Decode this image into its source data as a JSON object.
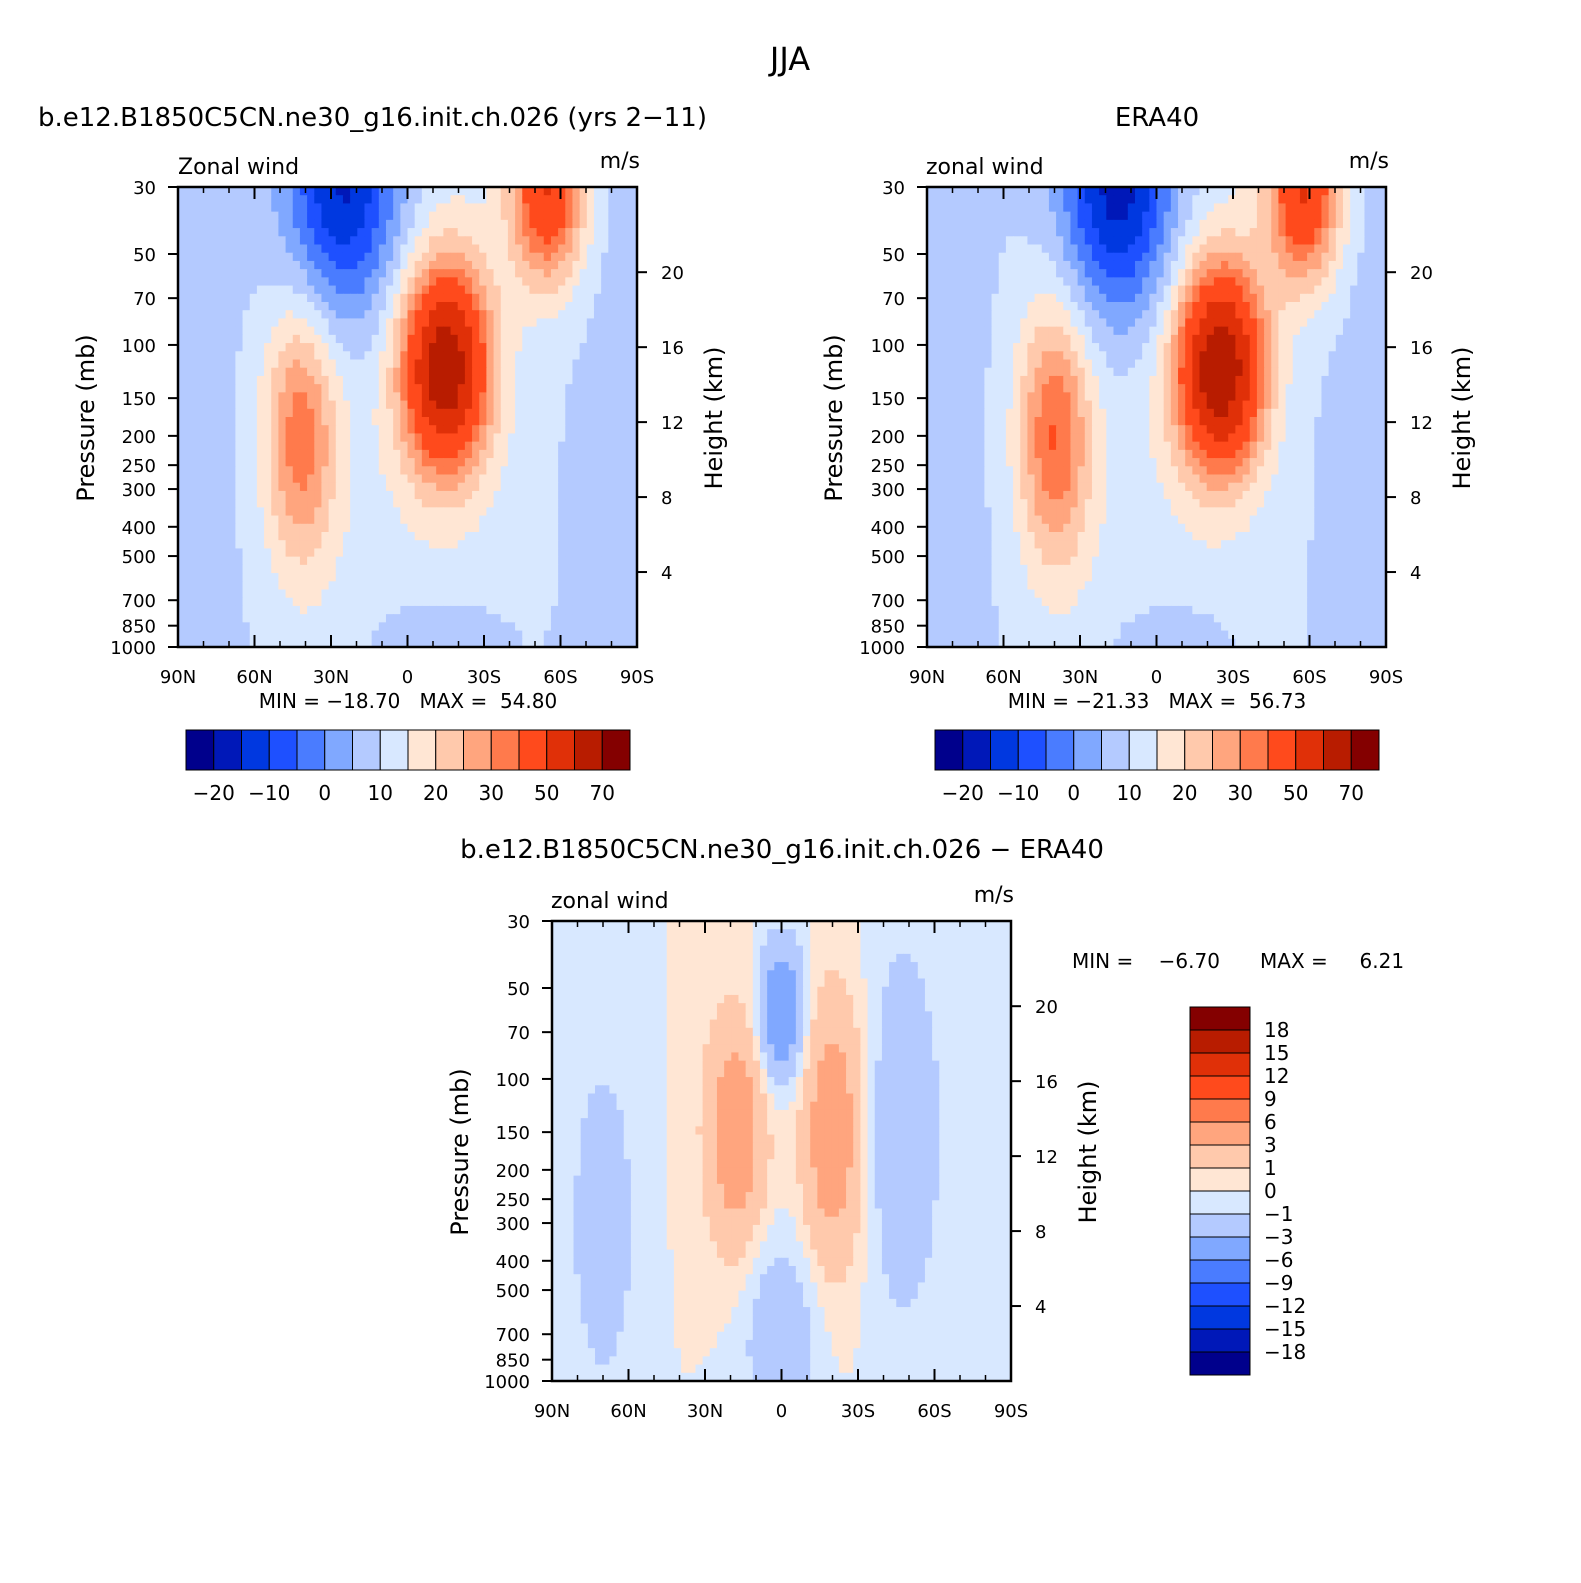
{
  "figure": {
    "title": "JJA"
  },
  "colors": {
    "main_scale": [
      "#00008c",
      "#0018b8",
      "#0038e0",
      "#1e50ff",
      "#4a7cff",
      "#80a8ff",
      "#b4caff",
      "#d8e8ff",
      "#ffe6d4",
      "#ffc9ac",
      "#ffa57e",
      "#ff7a4c",
      "#ff4a1c",
      "#e03008",
      "#b81c00",
      "#840000"
    ],
    "diff_scale": [
      "#00008c",
      "#0018b8",
      "#0038e0",
      "#1e50ff",
      "#4a7cff",
      "#80a8ff",
      "#b4caff",
      "#d8e8ff",
      "#ffe6d4",
      "#ffc9ac",
      "#ffa57e",
      "#ff7a4c",
      "#ff4a1c",
      "#e03008",
      "#b81c00",
      "#840000"
    ]
  },
  "chart_data": [
    {
      "id": "model",
      "type": "contour",
      "title": "b.e12.B1850C5CN.ne30_g16.init.ch.026 (yrs 2−11)",
      "left_label": "Zonal wind",
      "right_label": "m/s",
      "ylabel": "Pressure (mb)",
      "y2label": "Height (km)",
      "x_ticks": [
        "90N",
        "60N",
        "30N",
        "0",
        "30S",
        "60S",
        "90S"
      ],
      "y_ticks": [
        "30",
        "50",
        "70",
        "100",
        "150",
        "200",
        "250",
        "300",
        "400",
        "500",
        "700",
        "850",
        "1000"
      ],
      "y2_ticks": [
        "20",
        "16",
        "12",
        "8",
        "4"
      ],
      "xlim": [
        90,
        -90
      ],
      "ylim": [
        1000,
        30
      ],
      "scale": "log",
      "stats": "MIN = −18.70   MAX =  54.80",
      "legend_labels": [
        "−20",
        "−10",
        "0",
        "10",
        "20",
        "30",
        "50",
        "70"
      ],
      "fields": [
        {
          "lat": -15,
          "p": 120,
          "amp": 50,
          "wx": 12,
          "wy": 0.55
        },
        {
          "lat": -55,
          "p": 30,
          "amp": 35,
          "wx": 10,
          "wy": 0.5
        },
        {
          "lat": 42,
          "p": 200,
          "amp": 22,
          "wx": 10,
          "wy": 0.7
        },
        {
          "lat": 25,
          "p": 30,
          "amp": -28,
          "wx": 16,
          "wy": 0.7
        },
        {
          "lat": -10,
          "p": 1000,
          "amp": -6,
          "wx": 20,
          "wy": 0.3
        }
      ]
    },
    {
      "id": "obs",
      "type": "contour",
      "title": "ERA40",
      "left_label": "zonal wind",
      "right_label": "m/s",
      "ylabel": "Pressure (mb)",
      "y2label": "Height (km)",
      "x_ticks": [
        "90N",
        "60N",
        "30N",
        "0",
        "30S",
        "60S",
        "90S"
      ],
      "y_ticks": [
        "30",
        "50",
        "70",
        "100",
        "150",
        "200",
        "250",
        "300",
        "400",
        "500",
        "700",
        "850",
        "1000"
      ],
      "y2_ticks": [
        "20",
        "16",
        "12",
        "8",
        "4"
      ],
      "xlim": [
        90,
        -90
      ],
      "ylim": [
        1000,
        30
      ],
      "scale": "log",
      "stats": "MIN = −21.33   MAX =  56.73",
      "legend_labels": [
        "−20",
        "−10",
        "0",
        "10",
        "20",
        "30",
        "50",
        "70"
      ],
      "fields": [
        {
          "lat": -25,
          "p": 120,
          "amp": 52,
          "wx": 12,
          "wy": 0.55
        },
        {
          "lat": -58,
          "p": 30,
          "amp": 36,
          "wx": 10,
          "wy": 0.5
        },
        {
          "lat": 40,
          "p": 200,
          "amp": 24,
          "wx": 10,
          "wy": 0.7
        },
        {
          "lat": 15,
          "p": 30,
          "amp": -30,
          "wx": 16,
          "wy": 0.7
        },
        {
          "lat": -5,
          "p": 1000,
          "amp": -5,
          "wx": 20,
          "wy": 0.3
        }
      ]
    },
    {
      "id": "diff",
      "type": "contour",
      "title": "b.e12.B1850C5CN.ne30_g16.init.ch.026 − ERA40",
      "left_label": "zonal wind",
      "right_label": "m/s",
      "ylabel": "Pressure (mb)",
      "y2label": "Height (km)",
      "x_ticks": [
        "90N",
        "60N",
        "30N",
        "0",
        "30S",
        "60S",
        "90S"
      ],
      "y_ticks": [
        "30",
        "50",
        "70",
        "100",
        "150",
        "200",
        "250",
        "300",
        "400",
        "500",
        "700",
        "850",
        "1000"
      ],
      "y2_ticks": [
        "20",
        "16",
        "12",
        "8",
        "4"
      ],
      "xlim": [
        90,
        -90
      ],
      "ylim": [
        1000,
        30
      ],
      "scale": "log",
      "stats_min": "MIN =    −6.70",
      "stats_max": "MAX =     6.21",
      "legend_labels": [
        "18",
        "15",
        "12",
        "9",
        "6",
        "3",
        "1",
        "0",
        "−1",
        "−3",
        "−6",
        "−9",
        "−12",
        "−15",
        "−18"
      ],
      "fields": [
        {
          "lat": 18,
          "p": 150,
          "amp": 5,
          "wx": 8,
          "wy": 0.6
        },
        {
          "lat": -20,
          "p": 150,
          "amp": 5,
          "wx": 8,
          "wy": 0.7
        },
        {
          "lat": 0,
          "p": 60,
          "amp": -6,
          "wx": 6,
          "wy": 0.35
        },
        {
          "lat": -48,
          "p": 150,
          "amp": -2.5,
          "wx": 10,
          "wy": 1.0
        },
        {
          "lat": 70,
          "p": 300,
          "amp": -2.5,
          "wx": 8,
          "wy": 0.8
        },
        {
          "lat": 0,
          "p": 700,
          "amp": -2.5,
          "wx": 10,
          "wy": 0.5
        }
      ]
    }
  ]
}
